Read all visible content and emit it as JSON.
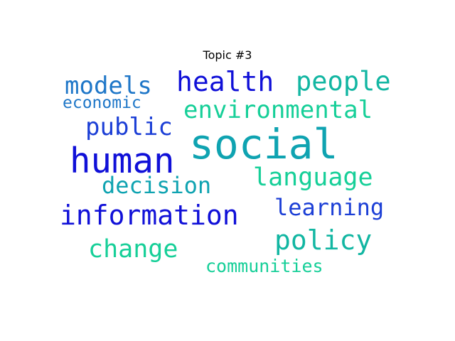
{
  "title": "Topic #3",
  "colors": {
    "deep_blue": "#1010d8",
    "blue": "#1c3fd6",
    "steel_blue": "#1f77c8",
    "teal": "#0fa3b1",
    "aqua": "#12b6a2",
    "mint": "#16cf98"
  },
  "words": [
    {
      "text": "social",
      "color": "#0fa3b1"
    },
    {
      "text": "human",
      "color": "#1010d8"
    },
    {
      "text": "information",
      "color": "#1010d8"
    },
    {
      "text": "health",
      "color": "#1010d8"
    },
    {
      "text": "environmental",
      "color": "#16cf98"
    },
    {
      "text": "people",
      "color": "#12b6a2"
    },
    {
      "text": "language",
      "color": "#16cf98"
    },
    {
      "text": "models",
      "color": "#1f77c8"
    },
    {
      "text": "public",
      "color": "#1c3fd6"
    },
    {
      "text": "decision",
      "color": "#0fa3b1"
    },
    {
      "text": "learning",
      "color": "#1c3fd6"
    },
    {
      "text": "policy",
      "color": "#12b6a2"
    },
    {
      "text": "change",
      "color": "#16cf98"
    },
    {
      "text": "economic",
      "color": "#1f77c8"
    },
    {
      "text": "communities",
      "color": "#16cf98"
    }
  ]
}
